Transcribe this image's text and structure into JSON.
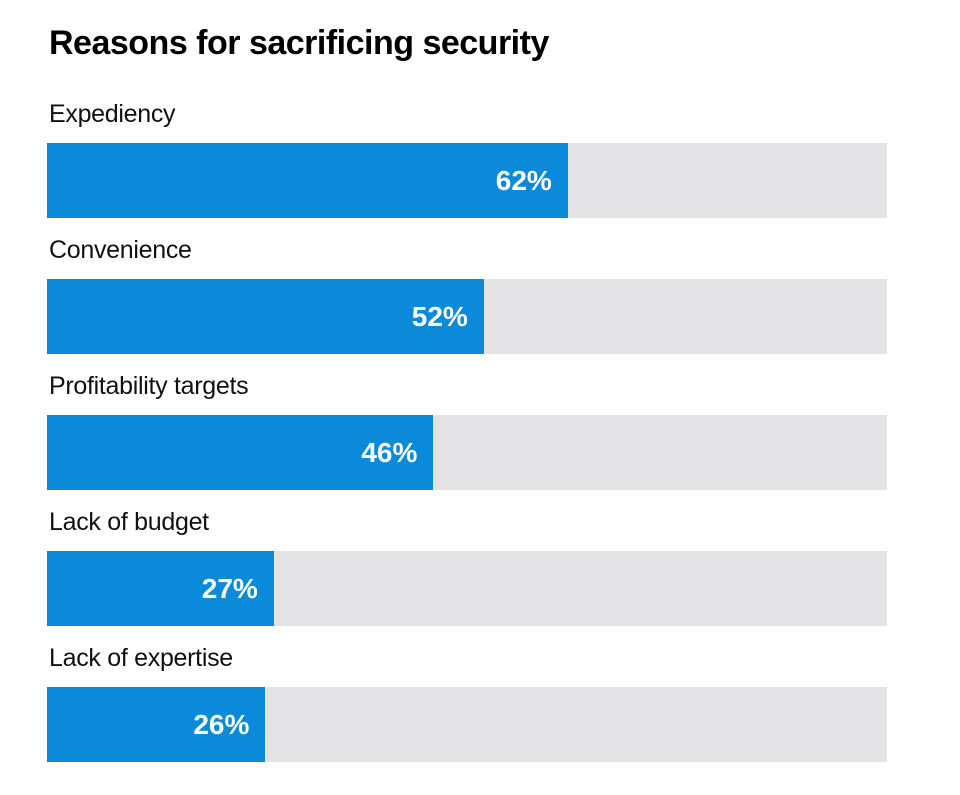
{
  "chart_data": {
    "type": "bar",
    "orientation": "horizontal",
    "title": "Reasons for sacrificing security",
    "categories": [
      "Expediency",
      "Convenience",
      "Profitability targets",
      "Lack of budget",
      "Lack of expertise"
    ],
    "values": [
      62,
      52,
      46,
      27,
      26
    ],
    "value_labels": [
      "62%",
      "52%",
      "46%",
      "27%",
      "26%"
    ],
    "xlim": [
      0,
      100
    ],
    "unit": "%",
    "grid": false,
    "legend": "none",
    "bar_color": "#0a8ad8",
    "track_color": "#e3e3e6"
  }
}
